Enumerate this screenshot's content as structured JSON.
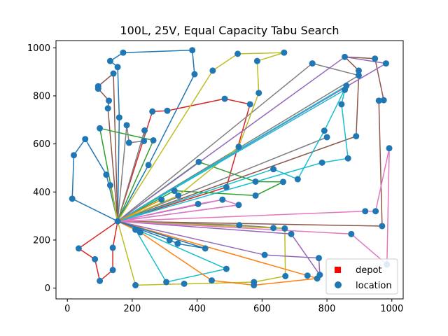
{
  "chart_data": {
    "type": "scatter",
    "title": "100L, 25V, Equal Capacity Tabu Search",
    "xlim": [
      -35,
      1035
    ],
    "ylim": [
      -45,
      1030
    ],
    "xticks": [
      0,
      200,
      400,
      600,
      800,
      1000
    ],
    "yticks": [
      0,
      200,
      400,
      600,
      800,
      1000
    ],
    "grid": false,
    "legend": {
      "position": "bottom-right",
      "entries": [
        {
          "label": "depot",
          "marker": "square",
          "color": "#ff0000"
        },
        {
          "label": "location",
          "marker": "circle",
          "color": "#1f77b4"
        }
      ]
    },
    "depot": {
      "x": 155,
      "y": 278
    },
    "locations": [
      [
        15,
        372
      ],
      [
        20,
        553
      ],
      [
        55,
        620
      ],
      [
        35,
        165
      ],
      [
        85,
        120
      ],
      [
        100,
        30
      ],
      [
        140,
        75
      ],
      [
        140,
        168
      ],
      [
        120,
        472
      ],
      [
        132,
        428
      ],
      [
        100,
        665
      ],
      [
        125,
        748
      ],
      [
        128,
        780
      ],
      [
        95,
        840
      ],
      [
        95,
        830
      ],
      [
        142,
        893
      ],
      [
        132,
        945
      ],
      [
        155,
        920
      ],
      [
        172,
        980
      ],
      [
        385,
        990
      ],
      [
        392,
        890
      ],
      [
        160,
        710
      ],
      [
        183,
        678
      ],
      [
        190,
        605
      ],
      [
        236,
        612
      ],
      [
        238,
        656
      ],
      [
        265,
        615
      ],
      [
        250,
        512
      ],
      [
        262,
        735
      ],
      [
        308,
        738
      ],
      [
        485,
        788
      ],
      [
        563,
        765
      ],
      [
        528,
        588
      ],
      [
        490,
        420
      ],
      [
        210,
        243
      ],
      [
        225,
        232
      ],
      [
        315,
        200
      ],
      [
        340,
        185
      ],
      [
        425,
        165
      ],
      [
        490,
        80
      ],
      [
        210,
        12
      ],
      [
        305,
        25
      ],
      [
        360,
        18
      ],
      [
        445,
        32
      ],
      [
        575,
        25
      ],
      [
        575,
        12
      ],
      [
        672,
        50
      ],
      [
        740,
        52
      ],
      [
        770,
        40
      ],
      [
        775,
        125
      ],
      [
        778,
        55
      ],
      [
        690,
        225
      ],
      [
        670,
        248
      ],
      [
        635,
        250
      ],
      [
        530,
        262
      ],
      [
        478,
        368
      ],
      [
        528,
        346
      ],
      [
        403,
        350
      ],
      [
        330,
        405
      ],
      [
        342,
        385
      ],
      [
        290,
        368
      ],
      [
        405,
        525
      ],
      [
        580,
        443
      ],
      [
        580,
        385
      ],
      [
        665,
        442
      ],
      [
        710,
        453
      ],
      [
        635,
        495
      ],
      [
        785,
        522
      ],
      [
        800,
        628
      ],
      [
        792,
        655
      ],
      [
        845,
        765
      ],
      [
        855,
        825
      ],
      [
        860,
        842
      ],
      [
        865,
        540
      ],
      [
        855,
        962
      ],
      [
        898,
        905
      ],
      [
        898,
        885
      ],
      [
        890,
        632
      ],
      [
        755,
        935
      ],
      [
        960,
        780
      ],
      [
        975,
        782
      ],
      [
        948,
        955
      ],
      [
        982,
        935
      ],
      [
        970,
        258
      ],
      [
        992,
        582
      ],
      [
        950,
        320
      ],
      [
        918,
        320
      ],
      [
        875,
        225
      ],
      [
        985,
        98
      ],
      [
        448,
        905
      ],
      [
        525,
        975
      ],
      [
        668,
        980
      ],
      [
        585,
        945
      ],
      [
        590,
        812
      ],
      [
        608,
        138
      ]
    ],
    "series": [
      {
        "color": "#1f77b4",
        "points": [
          [
            155,
            278
          ],
          [
            15,
            372
          ],
          [
            20,
            553
          ],
          [
            55,
            620
          ],
          [
            120,
            472
          ],
          [
            155,
            278
          ]
        ]
      },
      {
        "color": "#1f77b4",
        "points": [
          [
            155,
            278
          ],
          [
            160,
            710
          ],
          [
            155,
            920
          ],
          [
            132,
            945
          ],
          [
            172,
            980
          ],
          [
            385,
            990
          ],
          [
            392,
            890
          ],
          [
            250,
            512
          ],
          [
            155,
            278
          ]
        ]
      },
      {
        "color": "#d62728",
        "points": [
          [
            155,
            278
          ],
          [
            35,
            165
          ],
          [
            85,
            120
          ],
          [
            100,
            30
          ],
          [
            140,
            75
          ],
          [
            140,
            168
          ],
          [
            155,
            278
          ]
        ]
      },
      {
        "color": "#d62728",
        "points": [
          [
            155,
            278
          ],
          [
            262,
            735
          ],
          [
            308,
            738
          ],
          [
            485,
            788
          ],
          [
            563,
            765
          ],
          [
            490,
            420
          ],
          [
            155,
            278
          ]
        ]
      },
      {
        "color": "#8c564b",
        "points": [
          [
            155,
            278
          ],
          [
            142,
            893
          ],
          [
            95,
            840
          ],
          [
            95,
            830
          ],
          [
            128,
            780
          ],
          [
            125,
            748
          ],
          [
            155,
            278
          ]
        ]
      },
      {
        "color": "#8c564b",
        "points": [
          [
            155,
            278
          ],
          [
            970,
            258
          ],
          [
            960,
            780
          ],
          [
            975,
            782
          ],
          [
            948,
            955
          ],
          [
            855,
            962
          ],
          [
            898,
            905
          ],
          [
            898,
            885
          ],
          [
            890,
            632
          ],
          [
            155,
            278
          ]
        ]
      },
      {
        "color": "#2ca02c",
        "points": [
          [
            155,
            278
          ],
          [
            100,
            665
          ],
          [
            265,
            615
          ],
          [
            155,
            278
          ]
        ]
      },
      {
        "color": "#2ca02c",
        "points": [
          [
            155,
            278
          ],
          [
            405,
            525
          ],
          [
            580,
            443
          ],
          [
            665,
            442
          ],
          [
            580,
            385
          ],
          [
            330,
            405
          ],
          [
            155,
            278
          ]
        ]
      },
      {
        "color": "#7f7f7f",
        "points": [
          [
            155,
            278
          ],
          [
            183,
            678
          ],
          [
            190,
            605
          ],
          [
            236,
            612
          ],
          [
            238,
            656
          ],
          [
            155,
            278
          ]
        ]
      },
      {
        "color": "#7f7f7f",
        "points": [
          [
            155,
            278
          ],
          [
            755,
            935
          ],
          [
            898,
            885
          ],
          [
            155,
            278
          ]
        ]
      },
      {
        "color": "#7f7f7f",
        "points": [
          [
            155,
            278
          ],
          [
            800,
            628
          ],
          [
            155,
            278
          ]
        ]
      },
      {
        "color": "#7f7f7f",
        "points": [
          [
            155,
            278
          ],
          [
            530,
            262
          ],
          [
            670,
            248
          ],
          [
            155,
            278
          ]
        ]
      },
      {
        "color": "#bcbd22",
        "points": [
          [
            155,
            278
          ],
          [
            448,
            905
          ],
          [
            525,
            975
          ],
          [
            668,
            980
          ],
          [
            585,
            945
          ],
          [
            590,
            812
          ],
          [
            528,
            588
          ],
          [
            342,
            385
          ],
          [
            155,
            278
          ]
        ]
      },
      {
        "color": "#bcbd22",
        "points": [
          [
            155,
            278
          ],
          [
            210,
            12
          ],
          [
            575,
            25
          ],
          [
            672,
            50
          ],
          [
            670,
            248
          ],
          [
            155,
            278
          ]
        ]
      },
      {
        "color": "#9467bd",
        "points": [
          [
            155,
            278
          ],
          [
            855,
            962
          ],
          [
            982,
            935
          ],
          [
            155,
            278
          ]
        ]
      },
      {
        "color": "#9467bd",
        "points": [
          [
            155,
            278
          ],
          [
            690,
            225
          ],
          [
            778,
            55
          ],
          [
            775,
            125
          ],
          [
            608,
            138
          ],
          [
            155,
            278
          ]
        ]
      },
      {
        "color": "#9467bd",
        "points": [
          [
            155,
            278
          ],
          [
            478,
            368
          ],
          [
            528,
            346
          ],
          [
            155,
            278
          ]
        ]
      },
      {
        "color": "#e377c2",
        "points": [
          [
            155,
            278
          ],
          [
            875,
            225
          ],
          [
            985,
            98
          ],
          [
            992,
            582
          ],
          [
            950,
            320
          ],
          [
            918,
            320
          ],
          [
            155,
            278
          ]
        ]
      },
      {
        "color": "#e377c2",
        "points": [
          [
            155,
            278
          ],
          [
            403,
            350
          ],
          [
            478,
            368
          ],
          [
            528,
            346
          ],
          [
            155,
            278
          ]
        ]
      },
      {
        "color": "#17becf",
        "points": [
          [
            155,
            278
          ],
          [
            855,
            825
          ],
          [
            845,
            765
          ],
          [
            865,
            540
          ],
          [
            785,
            522
          ],
          [
            155,
            278
          ]
        ]
      },
      {
        "color": "#17becf",
        "points": [
          [
            155,
            278
          ],
          [
            635,
            495
          ],
          [
            710,
            453
          ],
          [
            792,
            655
          ],
          [
            860,
            842
          ],
          [
            155,
            278
          ]
        ]
      },
      {
        "color": "#17becf",
        "points": [
          [
            155,
            278
          ],
          [
            210,
            243
          ],
          [
            305,
            25
          ],
          [
            490,
            80
          ],
          [
            155,
            278
          ]
        ]
      },
      {
        "color": "#ff7f0e",
        "points": [
          [
            155,
            278
          ],
          [
            740,
            52
          ],
          [
            770,
            40
          ],
          [
            575,
            12
          ],
          [
            445,
            32
          ],
          [
            225,
            232
          ],
          [
            155,
            278
          ]
        ]
      },
      {
        "color": "#ff7f0e",
        "points": [
          [
            155,
            278
          ],
          [
            290,
            368
          ],
          [
            155,
            278
          ]
        ]
      },
      {
        "color": "#1f77b4",
        "points": [
          [
            155,
            278
          ],
          [
            315,
            200
          ],
          [
            340,
            185
          ],
          [
            425,
            165
          ],
          [
            155,
            278
          ]
        ]
      },
      {
        "color": "#bcbd22",
        "points": [
          [
            155,
            278
          ],
          [
            132,
            428
          ],
          [
            155,
            278
          ]
        ]
      }
    ]
  }
}
